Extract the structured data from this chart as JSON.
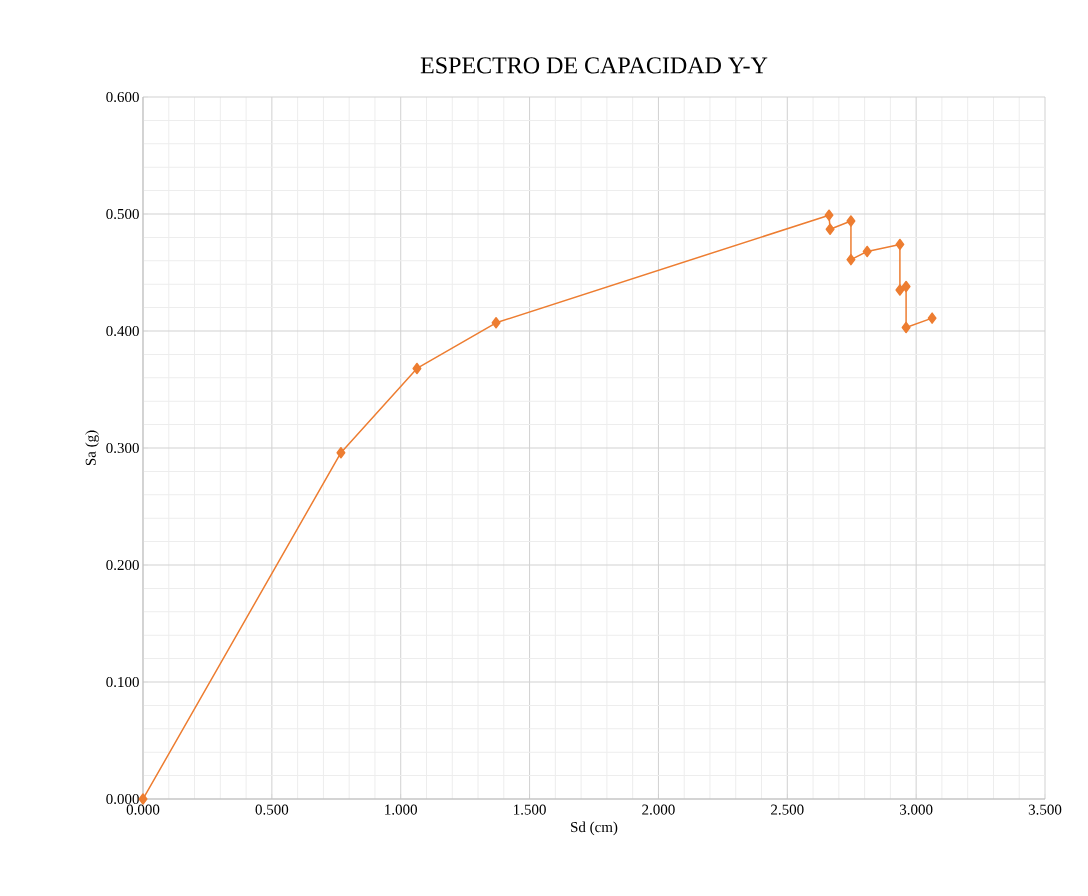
{
  "chart_data": {
    "type": "line",
    "title": "ESPECTRO DE CAPACIDAD Y-Y",
    "xlabel": "Sd (cm)",
    "ylabel": "Sa (g)",
    "series": [
      {
        "color": "#ed7d31",
        "x": [
          0.0,
          0.768,
          1.063,
          1.37,
          2.662,
          2.666,
          2.747,
          2.747,
          2.81,
          2.937,
          2.937,
          2.961,
          2.961,
          3.062
        ],
        "values": [
          0.0,
          0.296,
          0.368,
          0.407,
          0.499,
          0.487,
          0.494,
          0.461,
          0.468,
          0.474,
          0.435,
          0.438,
          0.403,
          0.411
        ]
      }
    ],
    "xlim": [
      0,
      3.5
    ],
    "ylim": [
      0,
      0.6
    ],
    "xticks": [
      {
        "value": 0,
        "label": "0.000"
      },
      {
        "value": 0.5,
        "label": "0.500"
      },
      {
        "value": 1,
        "label": "1.000"
      },
      {
        "value": 1.5,
        "label": "1.500"
      },
      {
        "value": 2,
        "label": "2.000"
      },
      {
        "value": 2.5,
        "label": "2.500"
      },
      {
        "value": 3,
        "label": "3.000"
      },
      {
        "value": 3.5,
        "label": "3.500"
      }
    ],
    "yticks": [
      {
        "value": 0,
        "label": "0.000"
      },
      {
        "value": 0.1,
        "label": "0.100"
      },
      {
        "value": 0.2,
        "label": "0.200"
      },
      {
        "value": 0.3,
        "label": "0.300"
      },
      {
        "value": 0.4,
        "label": "0.400"
      },
      {
        "value": 0.5,
        "label": "0.500"
      },
      {
        "value": 0.6,
        "label": "0.600"
      }
    ],
    "grid": true,
    "marker": "diamond",
    "line_style": "solid",
    "legend": false
  }
}
